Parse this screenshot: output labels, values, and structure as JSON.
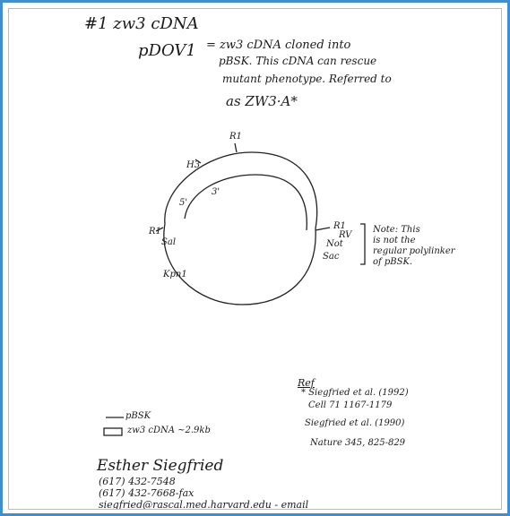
{
  "header": {
    "title": "#1 zw3 cDNA"
  },
  "description": {
    "name": "pDOV1",
    "lines": [
      "= zw3 cDNA cloned into",
      "pBSK. This cDNA can rescue",
      "mutant phenotype. Referred to",
      "as ZW3·A*"
    ]
  },
  "map": {
    "labels": [
      "R1",
      "H3",
      "5'",
      "3'",
      "R1",
      "Sal",
      "Kpn1",
      "R1",
      "RV",
      "Not",
      "Sac"
    ]
  },
  "note": {
    "lines": [
      "Note: This",
      "is not the",
      "regular polylinker",
      "of pBSK."
    ]
  },
  "legend": {
    "items": [
      "pBSK",
      "zw3 cDNA ~2.9kb"
    ]
  },
  "reference": {
    "title": "Ref",
    "lines": [
      "* Siegfried et al. (1992)",
      "Cell 71 1167-1179",
      "Siegfried et al. (1990)",
      "Nature 345, 825-829"
    ]
  },
  "contact": {
    "name": "Esther Siegfried",
    "lines": [
      "(617) 432-7548",
      "(617) 432-7668-fax",
      "siegfried@rascal.med.harvard.edu - email"
    ]
  }
}
